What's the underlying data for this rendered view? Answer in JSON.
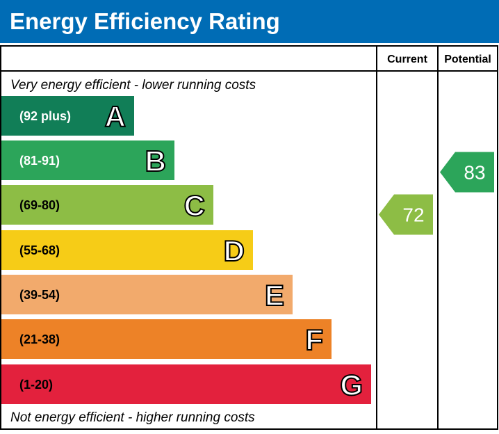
{
  "title": "Energy Efficiency Rating",
  "colors": {
    "header": "#006cb5",
    "arrow_text": "#ffffff"
  },
  "chart_data": {
    "type": "bar",
    "title": "Energy Efficiency Rating",
    "columns": [
      "Current",
      "Potential"
    ],
    "top_note": "Very energy efficient - lower running costs",
    "bottom_note": "Not energy efficient - higher running costs",
    "bands": [
      {
        "letter": "A",
        "range": "(92 plus)",
        "color": "#117e57"
      },
      {
        "letter": "B",
        "range": "(81-91)",
        "color": "#2ca55a"
      },
      {
        "letter": "C",
        "range": "(69-80)",
        "color": "#8dbd45"
      },
      {
        "letter": "D",
        "range": "(55-68)",
        "color": "#f6cc17"
      },
      {
        "letter": "E",
        "range": "(39-54)",
        "color": "#f2aa6c"
      },
      {
        "letter": "F",
        "range": "(21-38)",
        "color": "#ed8227"
      },
      {
        "letter": "G",
        "range": "(1-20)",
        "color": "#e3213d"
      }
    ],
    "current": {
      "value": "72",
      "band": "C",
      "color": "#8dbd45"
    },
    "potential": {
      "value": "83",
      "band": "B",
      "color": "#2ca55a"
    }
  }
}
